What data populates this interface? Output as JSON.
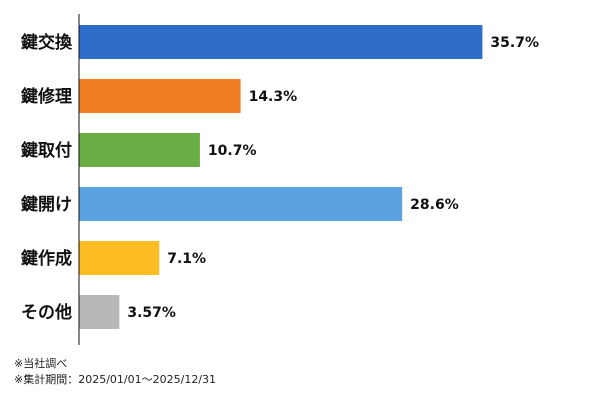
{
  "chart_data": {
    "type": "bar",
    "orientation": "horizontal",
    "categories": [
      "鍵交換",
      "鍵修理",
      "鍵取付",
      "鍵開け",
      "鍵作成",
      "その他"
    ],
    "values": [
      35.7,
      14.3,
      10.7,
      28.6,
      7.1,
      3.57
    ],
    "value_labels": [
      "35.7%",
      "14.3%",
      "10.7%",
      "28.6%",
      "7.1%",
      "3.57%"
    ],
    "colors": [
      "#2e6dc9",
      "#f07e22",
      "#6aad45",
      "#5ba3e0",
      "#fbbd22",
      "#b8b8b8"
    ],
    "title": "",
    "xlabel": "",
    "ylabel": "",
    "xlim": [
      0,
      40
    ],
    "grid": false,
    "legend": "none"
  },
  "notes": [
    "※当社調べ",
    "※集計期間：2025/01/01〜2025/12/31"
  ]
}
